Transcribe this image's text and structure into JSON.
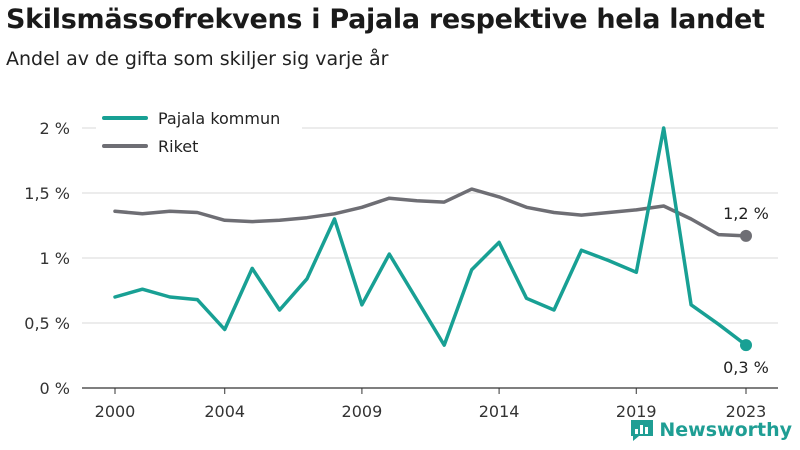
{
  "title": "Skilsmässofrekvens i Pajala respektive hela landet",
  "subtitle": "Andel av de gifta som skiljer sig varje år",
  "brand": "Newsworthy",
  "chart_data": {
    "type": "line",
    "x": [
      2000,
      2001,
      2002,
      2003,
      2004,
      2005,
      2006,
      2007,
      2008,
      2009,
      2010,
      2011,
      2012,
      2013,
      2014,
      2015,
      2016,
      2017,
      2018,
      2019,
      2020,
      2021,
      2022,
      2023
    ],
    "x_ticks": [
      2000,
      2004,
      2009,
      2014,
      2019,
      2023
    ],
    "x_tick_labels": [
      "2000",
      "2004",
      "2009",
      "2014",
      "2019",
      "2023"
    ],
    "ylim": [
      0,
      2
    ],
    "y_ticks": [
      0,
      0.5,
      1,
      1.5,
      2
    ],
    "y_tick_labels": [
      "0 %",
      "0,5 %",
      "1 %",
      "1,5 %",
      "2 %"
    ],
    "grid": true,
    "legend_position": "top-left",
    "series": [
      {
        "name": "Pajala kommun",
        "color": "#18a094",
        "values": [
          0.7,
          0.76,
          0.7,
          0.68,
          0.45,
          0.92,
          0.6,
          0.84,
          1.3,
          0.64,
          1.03,
          0.68,
          0.33,
          0.91,
          1.12,
          0.69,
          0.6,
          1.06,
          0.98,
          0.89,
          2.0,
          0.64,
          0.49,
          0.33
        ],
        "end_label": "0,3 %"
      },
      {
        "name": "Riket",
        "color": "#6e6e74",
        "values": [
          1.36,
          1.34,
          1.36,
          1.35,
          1.29,
          1.28,
          1.29,
          1.31,
          1.34,
          1.39,
          1.46,
          1.44,
          1.43,
          1.53,
          1.47,
          1.39,
          1.35,
          1.33,
          1.35,
          1.37,
          1.4,
          1.3,
          1.18,
          1.17
        ],
        "end_label": "1,2 %"
      }
    ]
  }
}
